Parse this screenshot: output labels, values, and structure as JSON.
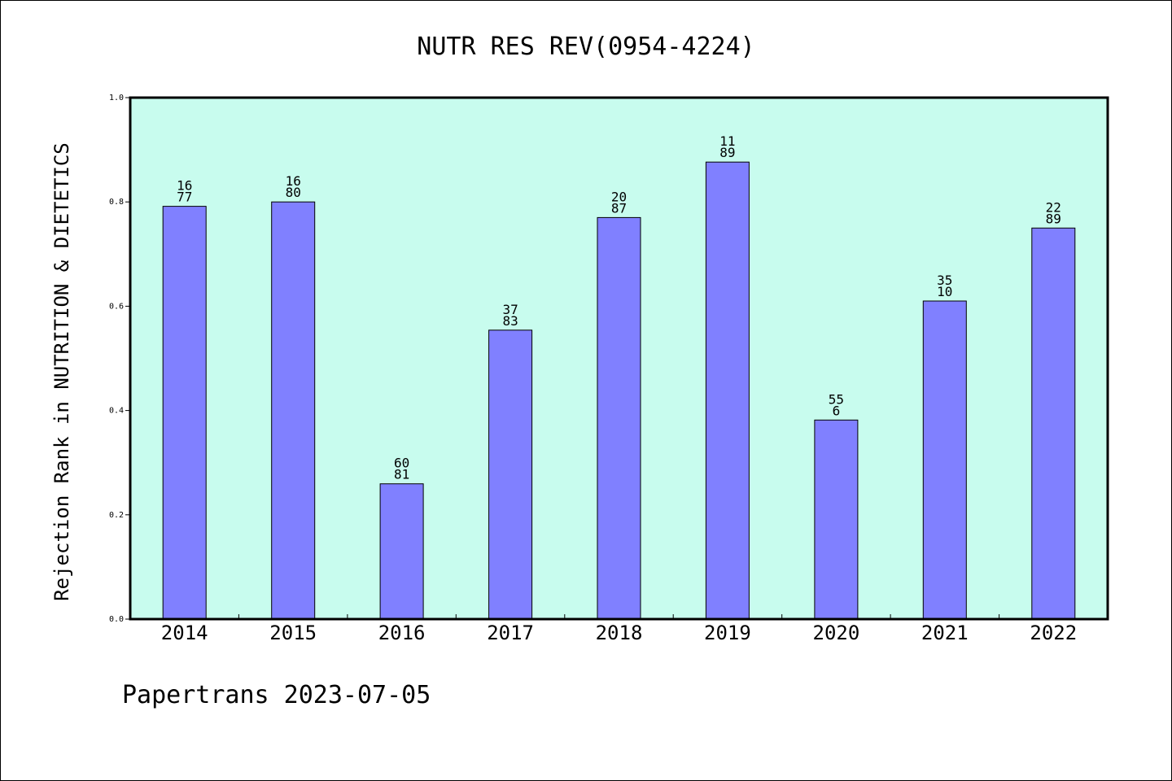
{
  "chart_data": {
    "type": "bar",
    "title": "NUTR RES REV(0954-4224)",
    "xlabel": "",
    "ylabel": "Rejection Rank in NUTRITION & DIETETICS",
    "ylim": [
      0.0,
      1.0
    ],
    "yticks": [
      "0.0",
      "0.2",
      "0.4",
      "0.6",
      "0.8",
      "1.0"
    ],
    "categories": [
      "2014",
      "2015",
      "2016",
      "2017",
      "2018",
      "2019",
      "2020",
      "2021",
      "2022"
    ],
    "values": [
      0.7916,
      0.8,
      0.2595,
      0.5542,
      0.7701,
      0.8764,
      0.3818,
      0.61,
      0.75
    ],
    "labels_top": [
      "16",
      "16",
      "60",
      "37",
      "20",
      "11",
      "55",
      "35",
      "22"
    ],
    "labels_bottom": [
      "77",
      "80",
      "81",
      "83",
      "87",
      "89",
      "6",
      "10",
      "89"
    ],
    "grid": false,
    "colors": {
      "bar": "#8080ff",
      "plot_background": "#c8fcee",
      "bar_edge": "#000000"
    }
  },
  "footer": {
    "text": "Papertrans 2023-07-05"
  }
}
